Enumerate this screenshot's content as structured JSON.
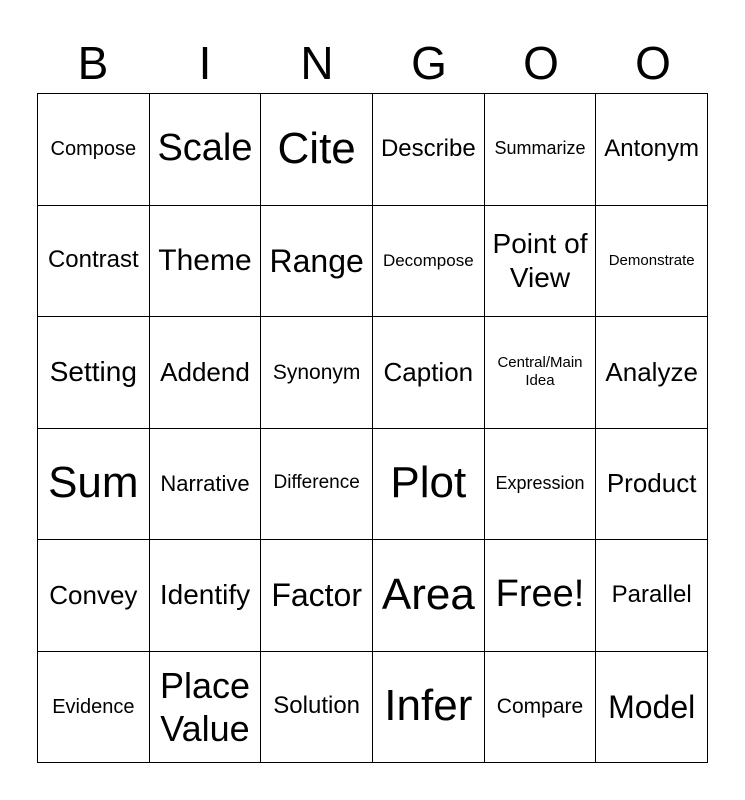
{
  "header": [
    "B",
    "I",
    "N",
    "G",
    "O",
    "O"
  ],
  "cells": [
    "Compose",
    "Scale",
    "Cite",
    "Describe",
    "Summarize",
    "Antonym",
    "Contrast",
    "Theme",
    "Range",
    "Decompose",
    "Point of View",
    "Demonstrate",
    "Setting",
    "Addend",
    "Synonym",
    "Caption",
    "Central/Main Idea",
    "Analyze",
    "Sum",
    "Narrative",
    "Difference",
    "Plot",
    "Expression",
    "Product",
    "Convey",
    "Identify",
    "Factor",
    "Area",
    "Free!",
    "Parallel",
    "Evidence",
    "Place Value",
    "Solution",
    "Infer",
    "Compare",
    "Model"
  ]
}
